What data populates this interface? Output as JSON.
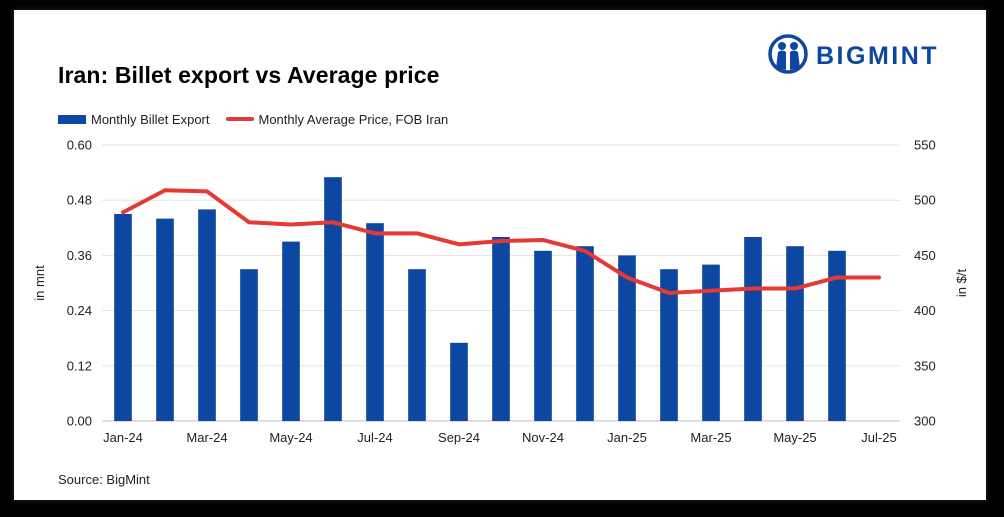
{
  "title": "Iran: Billet export vs Average price",
  "logo": {
    "text": "BIGMINT",
    "color": "#0d47a1",
    "icon": "bigmint-people-icon"
  },
  "source": "Source: BigMint",
  "colors": {
    "bar": "#0d47a1",
    "line": "#e53935",
    "grid": "#e6e6e6",
    "text": "#222222"
  },
  "chart_data": {
    "type": "bar+line",
    "x": [
      "Jan-24",
      "Feb-24",
      "Mar-24",
      "Apr-24",
      "May-24",
      "Jun-24",
      "Jul-24",
      "Aug-24",
      "Sep-24",
      "Oct-24",
      "Nov-24",
      "Dec-24",
      "Jan-25",
      "Feb-25",
      "Mar-25",
      "Apr-25",
      "May-25",
      "Jun-25",
      "Jul-25"
    ],
    "x_tick_labels": [
      "Jan-24",
      "Mar-24",
      "May-24",
      "Jul-24",
      "Sep-24",
      "Nov-24",
      "Jan-25",
      "Mar-25",
      "May-25",
      "Jul-25"
    ],
    "series": [
      {
        "name": "Monthly Billet Export",
        "type": "bar",
        "axis": "left",
        "values": [
          0.45,
          0.44,
          0.46,
          0.33,
          0.39,
          0.53,
          0.43,
          0.33,
          0.17,
          0.4,
          0.37,
          0.38,
          0.36,
          0.33,
          0.34,
          0.4,
          0.38,
          0.37,
          null
        ]
      },
      {
        "name": "Monthly Average Price, FOB Iran",
        "type": "line",
        "axis": "right",
        "values": [
          489,
          509,
          508,
          480,
          478,
          480,
          470,
          470,
          460,
          463,
          464,
          454,
          430,
          416,
          418,
          420,
          420,
          430,
          430
        ]
      }
    ],
    "y_left": {
      "label": "in mnt",
      "min": 0,
      "max": 0.6,
      "ticks": [
        "0.00",
        "0.12",
        "0.24",
        "0.36",
        "0.48",
        "0.60"
      ]
    },
    "y_right": {
      "label": "in $/t",
      "min": 300,
      "max": 550,
      "ticks": [
        "300",
        "350",
        "400",
        "450",
        "500",
        "550"
      ]
    },
    "grid": true,
    "legend_position": "top-left"
  }
}
